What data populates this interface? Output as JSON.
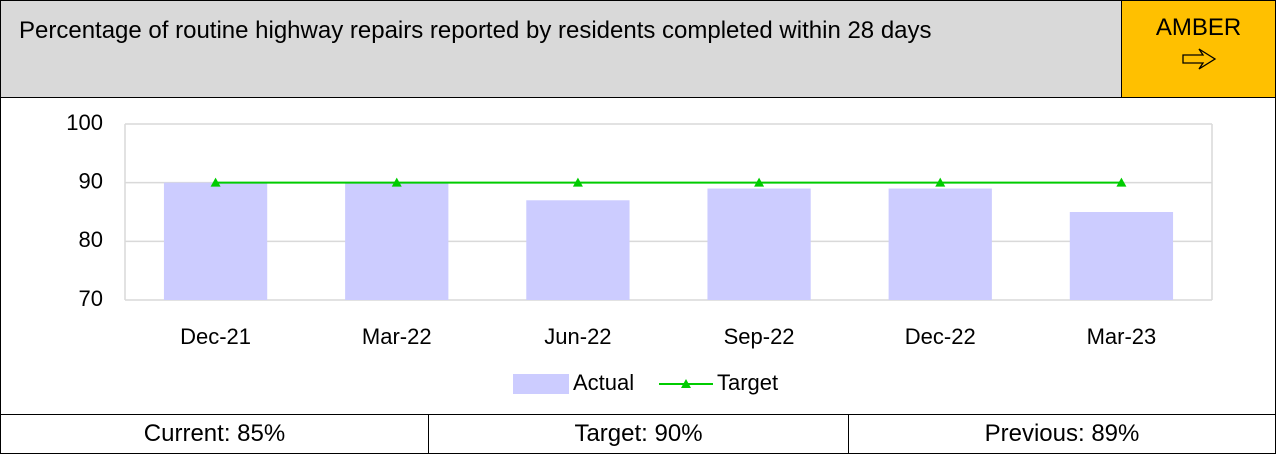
{
  "header": {
    "title": "Percentage of routine highway repairs reported by residents completed within 28 days",
    "status": "AMBER"
  },
  "chart_data": {
    "type": "bar",
    "categories": [
      "Dec-21",
      "Mar-22",
      "Jun-22",
      "Sep-22",
      "Dec-22",
      "Mar-23"
    ],
    "series": [
      {
        "name": "Actual",
        "type": "bar",
        "color": "#ccccff",
        "values": [
          90,
          90,
          87,
          89,
          89,
          85
        ]
      },
      {
        "name": "Target",
        "type": "line",
        "color": "#00cc00",
        "values": [
          90,
          90,
          90,
          90,
          90,
          90
        ]
      }
    ],
    "ylim": [
      70,
      100
    ],
    "yticks": [
      70,
      80,
      90,
      100
    ],
    "grid": true,
    "legend": "bottom"
  },
  "footer": [
    "Current: 85%",
    "Target: 90%",
    "Previous: 89%"
  ]
}
